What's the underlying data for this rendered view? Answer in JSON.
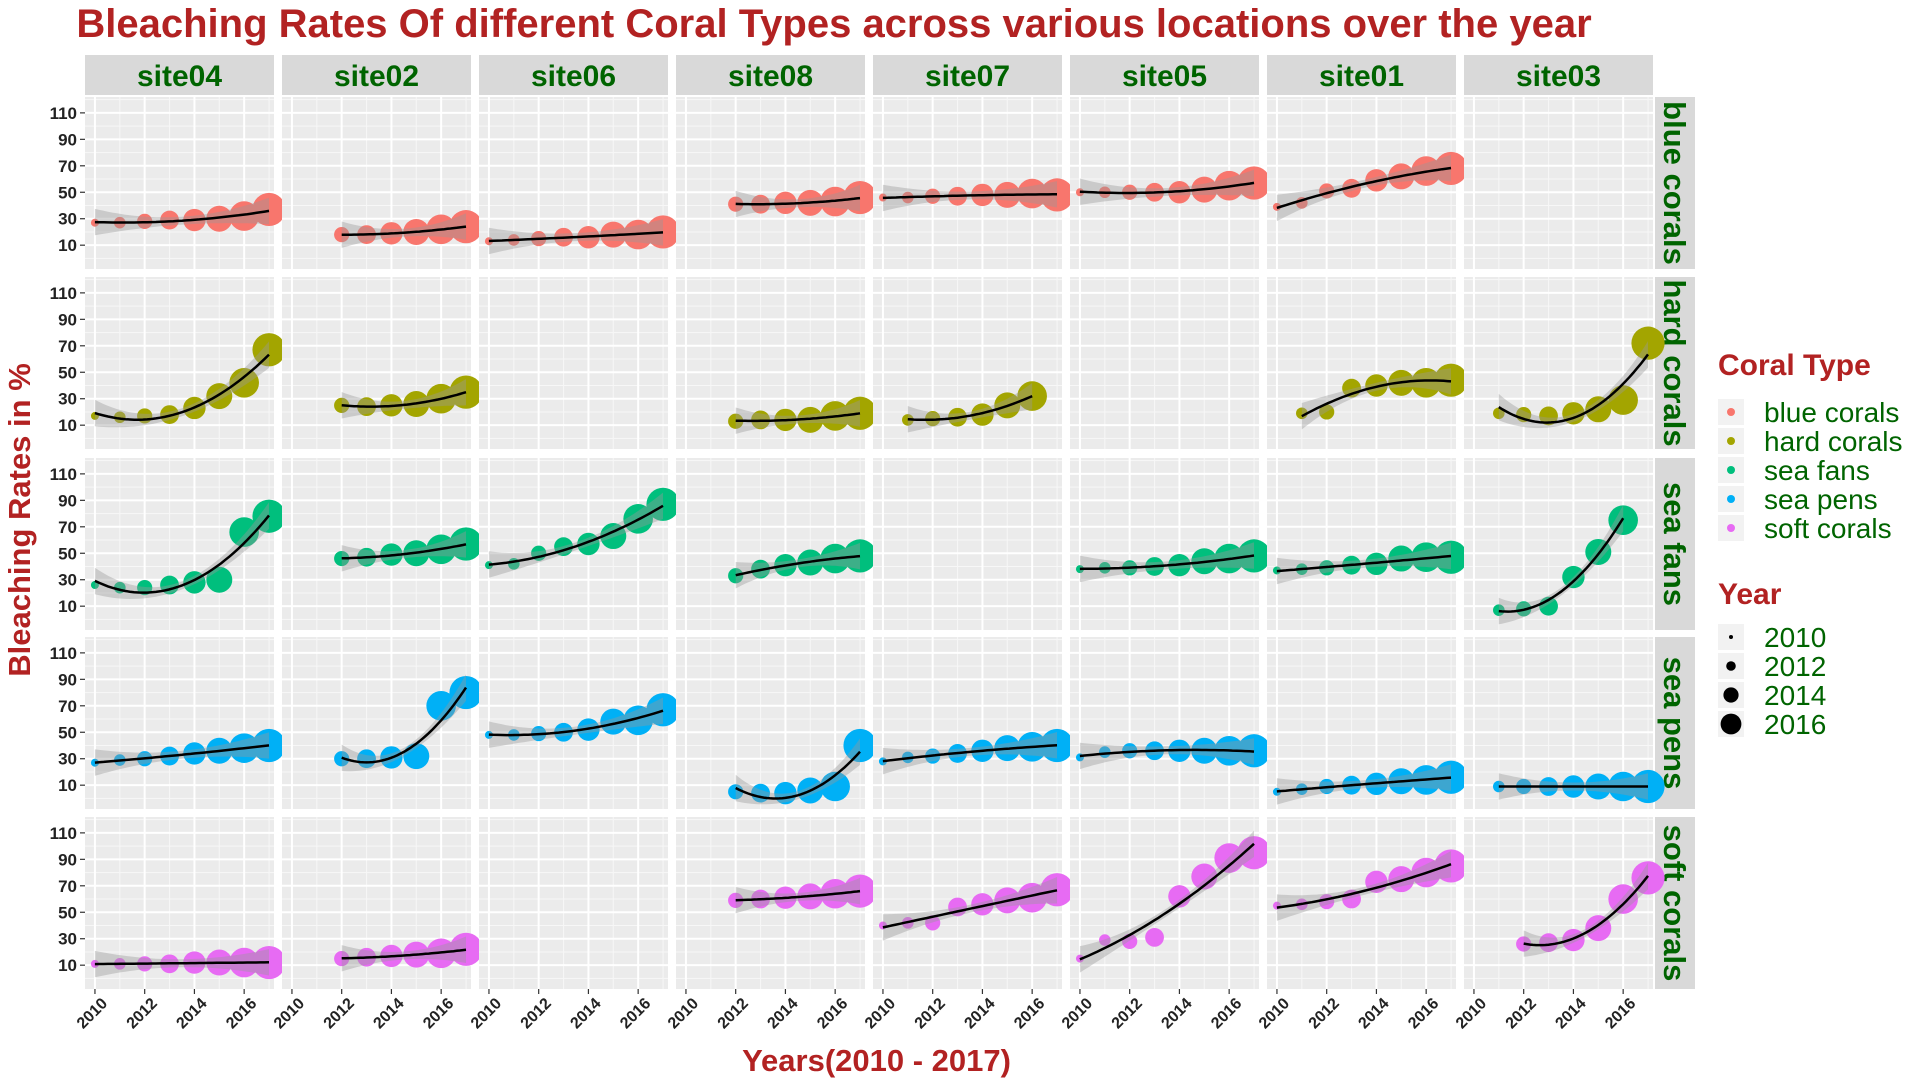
{
  "chart_data": {
    "type": "scatter",
    "title": "Bleaching Rates Of different Coral Types across various locations over the year",
    "xlabel": "Years(2010 - 2017)",
    "ylabel": "Bleaching Rates in %",
    "facet_cols": [
      "site04",
      "site02",
      "site06",
      "site08",
      "site07",
      "site05",
      "site01",
      "site03"
    ],
    "facet_rows": [
      "blue corals",
      "hard corals",
      "sea fans",
      "sea pens",
      "soft corals"
    ],
    "xlim": [
      2009.6,
      2017.2
    ],
    "ylim": [
      -8,
      122
    ],
    "x_ticks": [
      2010,
      2012,
      2014,
      2016
    ],
    "y_ticks": [
      10,
      30,
      50,
      70,
      90,
      110
    ],
    "grid": true,
    "smooth_line": true,
    "legend": {
      "position": "right",
      "color_title": "Coral Type",
      "size_title": "Year",
      "color_items": [
        {
          "label": "blue corals",
          "color": "#F8766D"
        },
        {
          "label": "hard corals",
          "color": "#A3A500"
        },
        {
          "label": "sea fans",
          "color": "#00BF7D"
        },
        {
          "label": "sea pens",
          "color": "#00B0F6"
        },
        {
          "label": "soft corals",
          "color": "#E76BF3"
        }
      ],
      "size_items": [
        "2010",
        "2012",
        "2014",
        "2016"
      ]
    },
    "series": {
      "blue corals": {
        "site04": [
          [
            2010,
            27
          ],
          [
            2011,
            27
          ],
          [
            2012,
            28
          ],
          [
            2013,
            29
          ],
          [
            2014,
            29
          ],
          [
            2015,
            30
          ],
          [
            2016,
            32
          ],
          [
            2017,
            37
          ]
        ],
        "site02": [
          [
            2012,
            18
          ],
          [
            2013,
            18
          ],
          [
            2014,
            19
          ],
          [
            2015,
            20
          ],
          [
            2016,
            22
          ],
          [
            2017,
            24
          ]
        ],
        "site06": [
          [
            2010,
            13
          ],
          [
            2011,
            14
          ],
          [
            2012,
            15
          ],
          [
            2013,
            16
          ],
          [
            2014,
            16
          ],
          [
            2015,
            18
          ],
          [
            2016,
            18
          ],
          [
            2017,
            20
          ]
        ],
        "site08": [
          [
            2012,
            41
          ],
          [
            2013,
            41
          ],
          [
            2014,
            42
          ],
          [
            2015,
            42
          ],
          [
            2016,
            43
          ],
          [
            2017,
            46
          ]
        ],
        "site07": [
          [
            2010,
            46
          ],
          [
            2011,
            46
          ],
          [
            2012,
            47
          ],
          [
            2013,
            47
          ],
          [
            2014,
            48
          ],
          [
            2015,
            48
          ],
          [
            2016,
            49
          ],
          [
            2017,
            48
          ]
        ],
        "site05": [
          [
            2010,
            50
          ],
          [
            2011,
            50
          ],
          [
            2012,
            50
          ],
          [
            2013,
            50
          ],
          [
            2014,
            50
          ],
          [
            2015,
            52
          ],
          [
            2016,
            55
          ],
          [
            2017,
            57
          ]
        ],
        "site01": [
          [
            2010,
            39
          ],
          [
            2011,
            42
          ],
          [
            2012,
            51
          ],
          [
            2013,
            53
          ],
          [
            2014,
            59
          ],
          [
            2015,
            62
          ],
          [
            2016,
            66
          ],
          [
            2017,
            68
          ]
        ],
        "site03": []
      },
      "hard corals": {
        "site04": [
          [
            2010,
            17
          ],
          [
            2011,
            16
          ],
          [
            2012,
            17
          ],
          [
            2013,
            18
          ],
          [
            2014,
            23
          ],
          [
            2015,
            32
          ],
          [
            2016,
            42
          ],
          [
            2017,
            67
          ]
        ],
        "site02": [
          [
            2012,
            25
          ],
          [
            2013,
            24
          ],
          [
            2014,
            25
          ],
          [
            2015,
            26
          ],
          [
            2016,
            30
          ],
          [
            2017,
            35
          ]
        ],
        "site06": [],
        "site08": [
          [
            2012,
            13
          ],
          [
            2013,
            14
          ],
          [
            2014,
            14
          ],
          [
            2015,
            14
          ],
          [
            2016,
            17
          ],
          [
            2017,
            19
          ]
        ],
        "site07": [
          [
            2011,
            14
          ],
          [
            2012,
            15
          ],
          [
            2013,
            16
          ],
          [
            2014,
            18
          ],
          [
            2015,
            25
          ],
          [
            2016,
            32
          ]
        ],
        "site05": [],
        "site01": [
          [
            2011,
            19
          ],
          [
            2012,
            20
          ],
          [
            2013,
            38
          ],
          [
            2014,
            40
          ],
          [
            2015,
            42
          ],
          [
            2016,
            42
          ],
          [
            2017,
            44
          ]
        ],
        "site03": [
          [
            2011,
            19
          ],
          [
            2012,
            18
          ],
          [
            2013,
            17
          ],
          [
            2014,
            19
          ],
          [
            2015,
            22
          ],
          [
            2016,
            29
          ],
          [
            2017,
            72
          ]
        ]
      },
      "sea fans": {
        "site04": [
          [
            2010,
            26
          ],
          [
            2011,
            24
          ],
          [
            2012,
            24
          ],
          [
            2013,
            26
          ],
          [
            2014,
            28
          ],
          [
            2015,
            30
          ],
          [
            2016,
            66
          ],
          [
            2017,
            78
          ]
        ],
        "site02": [
          [
            2012,
            46
          ],
          [
            2013,
            47
          ],
          [
            2014,
            49
          ],
          [
            2015,
            50
          ],
          [
            2016,
            53
          ],
          [
            2017,
            57
          ]
        ],
        "site06": [
          [
            2010,
            41
          ],
          [
            2011,
            42
          ],
          [
            2012,
            50
          ],
          [
            2013,
            55
          ],
          [
            2014,
            57
          ],
          [
            2015,
            63
          ],
          [
            2016,
            76
          ],
          [
            2017,
            87
          ]
        ],
        "site08": [
          [
            2012,
            33
          ],
          [
            2013,
            38
          ],
          [
            2014,
            41
          ],
          [
            2015,
            43
          ],
          [
            2016,
            46
          ],
          [
            2017,
            48
          ]
        ],
        "site07": [],
        "site05": [
          [
            2010,
            38
          ],
          [
            2011,
            39
          ],
          [
            2012,
            39
          ],
          [
            2013,
            40
          ],
          [
            2014,
            41
          ],
          [
            2015,
            44
          ],
          [
            2016,
            46
          ],
          [
            2017,
            48
          ]
        ],
        "site01": [
          [
            2010,
            37
          ],
          [
            2011,
            38
          ],
          [
            2012,
            39
          ],
          [
            2013,
            41
          ],
          [
            2014,
            42
          ],
          [
            2015,
            46
          ],
          [
            2016,
            47
          ],
          [
            2017,
            47
          ]
        ],
        "site03": [
          [
            2011,
            7
          ],
          [
            2012,
            8
          ],
          [
            2013,
            10
          ],
          [
            2014,
            32
          ],
          [
            2015,
            51
          ],
          [
            2016,
            75
          ]
        ]
      },
      "sea pens": {
        "site04": [
          [
            2010,
            27
          ],
          [
            2011,
            29
          ],
          [
            2012,
            30
          ],
          [
            2013,
            32
          ],
          [
            2014,
            34
          ],
          [
            2015,
            36
          ],
          [
            2016,
            38
          ],
          [
            2017,
            40
          ]
        ],
        "site02": [
          [
            2012,
            30
          ],
          [
            2013,
            30
          ],
          [
            2014,
            31
          ],
          [
            2015,
            32
          ],
          [
            2016,
            70
          ],
          [
            2017,
            80
          ]
        ],
        "site06": [
          [
            2010,
            48
          ],
          [
            2011,
            48
          ],
          [
            2012,
            49
          ],
          [
            2013,
            50
          ],
          [
            2014,
            52
          ],
          [
            2015,
            58
          ],
          [
            2016,
            59
          ],
          [
            2017,
            67
          ]
        ],
        "site08": [
          [
            2012,
            5
          ],
          [
            2013,
            4
          ],
          [
            2014,
            4
          ],
          [
            2015,
            6
          ],
          [
            2016,
            9
          ],
          [
            2017,
            40
          ]
        ],
        "site07": [
          [
            2010,
            28
          ],
          [
            2011,
            31
          ],
          [
            2012,
            32
          ],
          [
            2013,
            34
          ],
          [
            2014,
            36
          ],
          [
            2015,
            38
          ],
          [
            2016,
            39
          ],
          [
            2017,
            40
          ]
        ],
        "site05": [
          [
            2010,
            31
          ],
          [
            2011,
            35
          ],
          [
            2012,
            36
          ],
          [
            2013,
            36
          ],
          [
            2014,
            36
          ],
          [
            2015,
            36
          ],
          [
            2016,
            36
          ],
          [
            2017,
            36
          ]
        ],
        "site01": [
          [
            2010,
            5
          ],
          [
            2011,
            7
          ],
          [
            2012,
            9
          ],
          [
            2013,
            10
          ],
          [
            2014,
            11
          ],
          [
            2015,
            13
          ],
          [
            2016,
            14
          ],
          [
            2017,
            16
          ]
        ],
        "site03": [
          [
            2011,
            9
          ],
          [
            2012,
            9
          ],
          [
            2013,
            9
          ],
          [
            2014,
            9
          ],
          [
            2015,
            9
          ],
          [
            2016,
            9
          ],
          [
            2017,
            9
          ]
        ]
      },
      "soft corals": {
        "site04": [
          [
            2010,
            11
          ],
          [
            2011,
            11
          ],
          [
            2012,
            11
          ],
          [
            2013,
            11
          ],
          [
            2014,
            12
          ],
          [
            2015,
            12
          ],
          [
            2016,
            12
          ],
          [
            2017,
            12
          ]
        ],
        "site02": [
          [
            2012,
            15
          ],
          [
            2013,
            16
          ],
          [
            2014,
            17
          ],
          [
            2015,
            18
          ],
          [
            2016,
            19
          ],
          [
            2017,
            22
          ]
        ],
        "site06": [],
        "site08": [
          [
            2012,
            59
          ],
          [
            2013,
            60
          ],
          [
            2014,
            61
          ],
          [
            2015,
            62
          ],
          [
            2016,
            64
          ],
          [
            2017,
            66
          ]
        ],
        "site07": [
          [
            2010,
            40
          ],
          [
            2011,
            42
          ],
          [
            2012,
            42
          ],
          [
            2013,
            54
          ],
          [
            2014,
            56
          ],
          [
            2015,
            59
          ],
          [
            2016,
            61
          ],
          [
            2017,
            67
          ]
        ],
        "site05": [
          [
            2010,
            15
          ],
          [
            2011,
            29
          ],
          [
            2012,
            28
          ],
          [
            2013,
            31
          ],
          [
            2014,
            62
          ],
          [
            2015,
            77
          ],
          [
            2016,
            91
          ],
          [
            2017,
            95
          ]
        ],
        "site01": [
          [
            2010,
            55
          ],
          [
            2011,
            56
          ],
          [
            2012,
            58
          ],
          [
            2013,
            60
          ],
          [
            2014,
            73
          ],
          [
            2015,
            75
          ],
          [
            2016,
            80
          ],
          [
            2017,
            85
          ]
        ],
        "site03": [
          [
            2012,
            26
          ],
          [
            2013,
            27
          ],
          [
            2014,
            29
          ],
          [
            2015,
            38
          ],
          [
            2016,
            60
          ],
          [
            2017,
            76
          ]
        ]
      }
    }
  }
}
